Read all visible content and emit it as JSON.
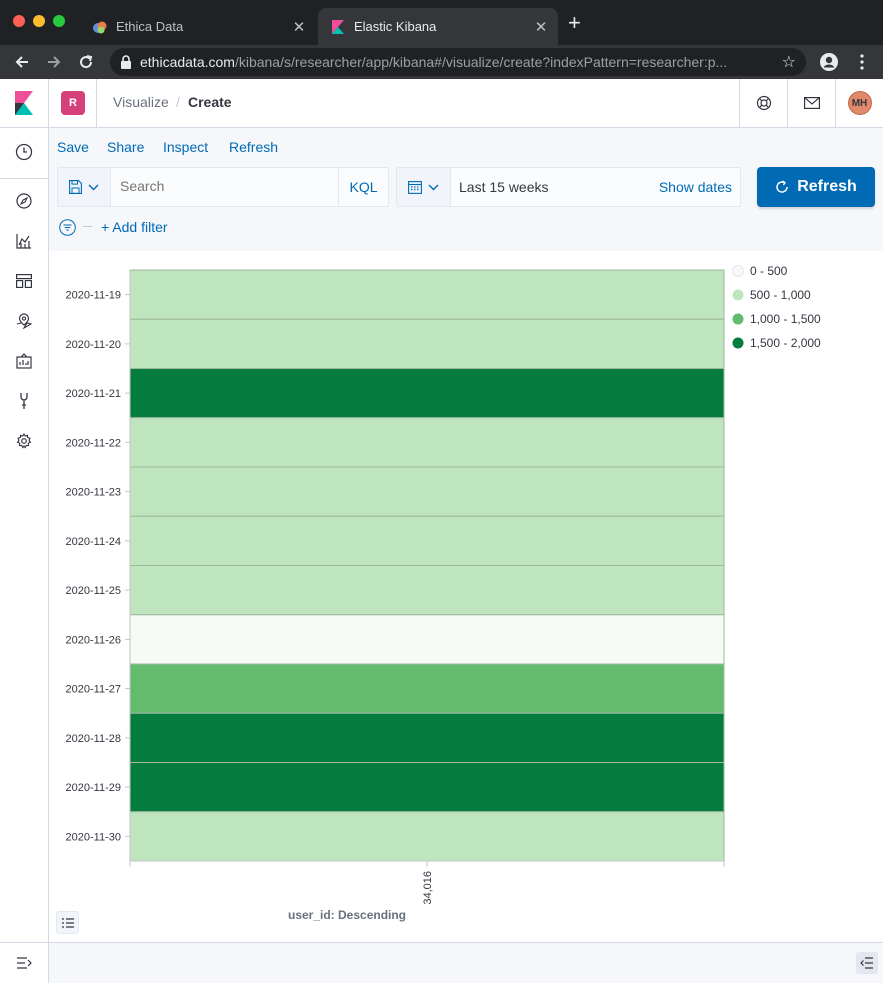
{
  "browser": {
    "tabs": [
      {
        "title": "Ethica Data",
        "active": false
      },
      {
        "title": "Elastic Kibana",
        "active": true
      }
    ],
    "url_host": "ethicadata.com",
    "url_path": "/kibana/s/researcher/app/kibana#/visualize/create?indexPattern=researcher:p..."
  },
  "header": {
    "space_initial": "R",
    "breadcrumbs": [
      "Visualize",
      "Create"
    ],
    "breadcrumb_separator": "/",
    "avatar_initials": "MH"
  },
  "topnav": {
    "menu": [
      "Save",
      "Share",
      "Inspect",
      "Refresh"
    ]
  },
  "query": {
    "search_placeholder": "Search",
    "language": "KQL",
    "date_range": "Last 15 weeks",
    "show_dates": "Show dates",
    "refresh_label": "Refresh",
    "add_filter": "+ Add filter"
  },
  "colors": {
    "accent": "#006bb4",
    "bin_0_500": "#f7fbf5",
    "bin_500_1000": "#bee5be",
    "bin_1000_1500": "#63bc6e",
    "bin_1500_2000": "#037c3e"
  },
  "chart_data": {
    "type": "heatmap",
    "y_categories": [
      "2020-11-19",
      "2020-11-20",
      "2020-11-21",
      "2020-11-22",
      "2020-11-23",
      "2020-11-24",
      "2020-11-25",
      "2020-11-26",
      "2020-11-27",
      "2020-11-28",
      "2020-11-29",
      "2020-11-30"
    ],
    "x_categories": [
      "34,016"
    ],
    "cell_bins": [
      1,
      1,
      3,
      1,
      1,
      1,
      1,
      0,
      2,
      3,
      3,
      1
    ],
    "xlabel": "user_id: Descending",
    "ylabel": "",
    "legend": {
      "position": "top-right",
      "entries": [
        "0 - 500",
        "500 - 1,000",
        "1,000 - 1,500",
        "1,500 - 2,000"
      ]
    }
  }
}
